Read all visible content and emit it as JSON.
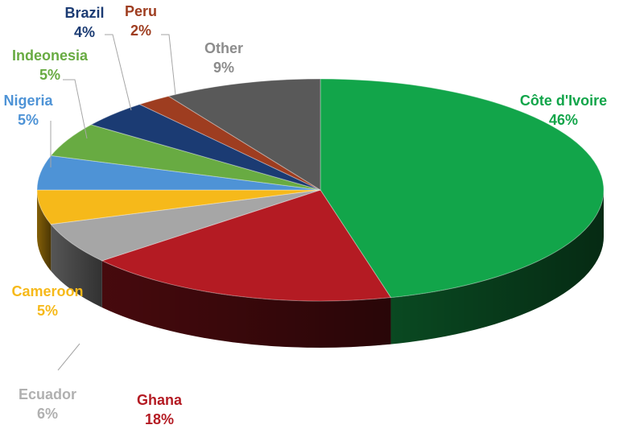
{
  "chart_data": {
    "type": "pie",
    "title": "",
    "start_angle_deg": 0,
    "direction": "clockwise",
    "slices": [
      {
        "label": "Côte d'Ivoire",
        "value": 46,
        "value_label": "46%",
        "color": "#12a54a",
        "dark": "#0a4d23"
      },
      {
        "label": "Ghana",
        "value": 18,
        "value_label": "18%",
        "color": "#b41b23",
        "dark": "#4a0a0e"
      },
      {
        "label": "Ecuador",
        "value": 6,
        "value_label": "6%",
        "color": "#a6a6a6",
        "dark": "#5a5a5a"
      },
      {
        "label": "Cameroon",
        "value": 5,
        "value_label": "5%",
        "color": "#f6b91a",
        "dark": "#8a6408"
      },
      {
        "label": "Nigeria",
        "value": 5,
        "value_label": "5%",
        "color": "#4e93d6",
        "dark": "#234e78"
      },
      {
        "label": "Indeonesia",
        "value": 5,
        "value_label": "5%",
        "color": "#68ab42",
        "dark": "#335a1f"
      },
      {
        "label": "Brazil",
        "value": 4,
        "value_label": "4%",
        "color": "#1b3b73",
        "dark": "#0b1a36"
      },
      {
        "label": "Peru",
        "value": 2,
        "value_label": "2%",
        "color": "#9e3d20",
        "dark": "#4a1a0c"
      },
      {
        "label": "Other",
        "value": 9,
        "value_label": "9%",
        "color": "#595959",
        "dark": "#2b2b2b"
      }
    ],
    "label_colors": {
      "Côte d'Ivoire": "#12a54a",
      "Ghana": "#b41b23",
      "Ecuador": "#b0b0b0",
      "Cameroon": "#f6b91a",
      "Nigeria": "#4e93d6",
      "Indeonesia": "#68ab42",
      "Brazil": "#1b3b73",
      "Peru": "#9e3d20",
      "Other": "#8c8c8c"
    }
  }
}
